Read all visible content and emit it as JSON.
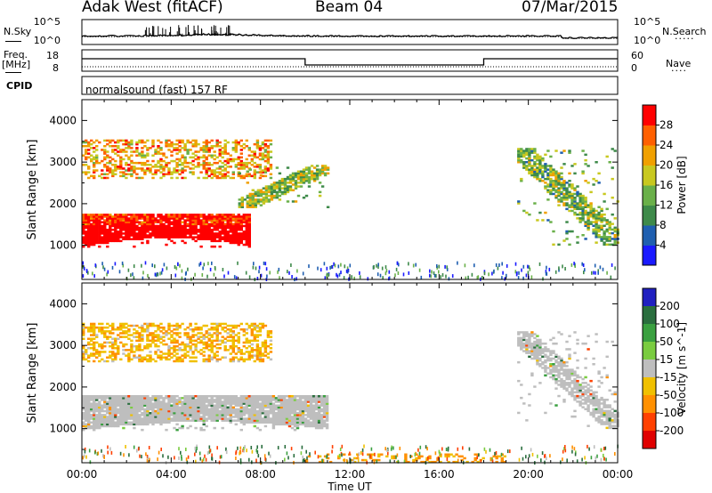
{
  "header": {
    "radar": "Adak West (fitACF)",
    "beam": "Beam 04",
    "date": "07/Mar/2015"
  },
  "summary": {
    "nsky_label": "N.Sky",
    "nsearch_label": "N.Search",
    "freq_label": "Freq.",
    "freq_unit": "[MHz]",
    "nave_label": "Nave",
    "cpid_label": "CPID",
    "cpid_text": "normalsound (fast) 157 RF",
    "noise_ticks_left": [
      "10^5",
      "10^0"
    ],
    "noise_ticks_right": [
      "10^5",
      "10^0"
    ],
    "freq_ticks": [
      "18",
      "8"
    ],
    "nave_ticks": [
      "60",
      "0"
    ]
  },
  "chart_data": [
    {
      "type": "heatmap",
      "title": "",
      "xlabel": "Time UT",
      "ylabel": "Slant Range [km]",
      "xlim": [
        0,
        24
      ],
      "ylim": [
        180,
        4500
      ],
      "x_ticks": [
        "00:00",
        "04:00",
        "08:00",
        "12:00",
        "16:00",
        "20:00",
        "00:00"
      ],
      "y_ticks": [
        1000,
        2000,
        3000,
        4000
      ],
      "colorbar": {
        "label": "Power [dB]",
        "range": [
          0,
          32
        ],
        "ticks": [
          4,
          8,
          12,
          16,
          20,
          24,
          28
        ]
      },
      "features": [
        {
          "name": "near-range echo band",
          "time_h": [
            0,
            7.5
          ],
          "range_km": [
            950,
            1750
          ],
          "power_db": 30
        },
        {
          "name": "upper band",
          "time_h": [
            0,
            8.5
          ],
          "range_km": [
            2600,
            3500
          ],
          "power_db": 22
        },
        {
          "name": "rising echo",
          "time_h": [
            7,
            11
          ],
          "range_km": [
            1900,
            2900
          ],
          "power_db": 16
        },
        {
          "name": "evening band",
          "time_h": [
            19.5,
            24
          ],
          "range_km": [
            1000,
            3300
          ],
          "power_db": 14
        }
      ]
    },
    {
      "type": "heatmap",
      "title": "",
      "xlabel": "Time UT",
      "ylabel": "Slant Range [km]",
      "xlim": [
        0,
        24
      ],
      "ylim": [
        180,
        4500
      ],
      "x_ticks": [
        "00:00",
        "04:00",
        "08:00",
        "12:00",
        "16:00",
        "20:00",
        "00:00"
      ],
      "y_ticks": [
        1000,
        2000,
        3000,
        4000
      ],
      "colorbar": {
        "label": "Velocity [m s^-1]",
        "range": [
          -250,
          250
        ],
        "ticks": [
          200,
          100,
          50,
          15,
          -15,
          -50,
          -100,
          -200
        ]
      },
      "features": [
        {
          "name": "ground scatter band",
          "time_h": [
            0,
            11
          ],
          "range_km": [
            950,
            1800
          ],
          "velocity": 0
        },
        {
          "name": "upper band",
          "time_h": [
            0,
            8.5
          ],
          "range_km": [
            2600,
            3500
          ],
          "velocity": -40
        },
        {
          "name": "evening band",
          "time_h": [
            19.5,
            24
          ],
          "range_km": [
            1000,
            3300
          ],
          "velocity": 0
        },
        {
          "name": "near-range scatter",
          "time_h": [
            10,
            19
          ],
          "range_km": [
            180,
            400
          ],
          "velocity": -60
        }
      ]
    }
  ],
  "colors": {
    "power_scale": [
      "#1a1aff",
      "#1f5fb0",
      "#3e8a4a",
      "#6ab04a",
      "#c8c820",
      "#f0a000",
      "#ff6000",
      "#ff0000"
    ],
    "velocity_scale": [
      "#2020c0",
      "#2a6e3e",
      "#3aa040",
      "#7acc40",
      "#bebebe",
      "#f0c000",
      "#ff9000",
      "#ff4000",
      "#e00000"
    ],
    "ground_scatter": "#bebebe"
  }
}
